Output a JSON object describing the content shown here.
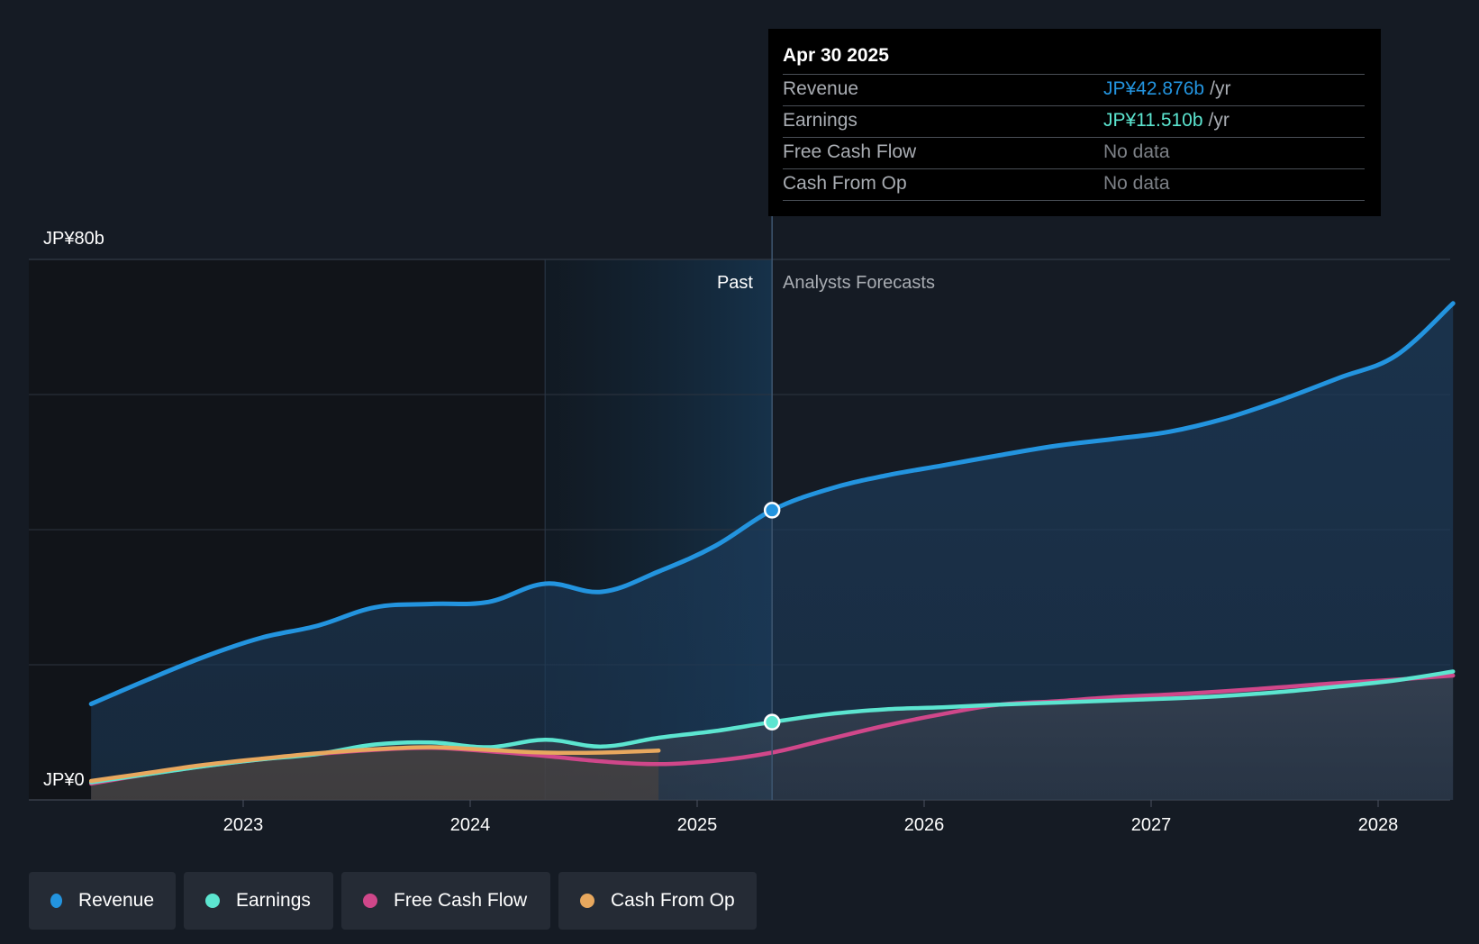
{
  "colors": {
    "background": "#151b24",
    "revenue": "#2394df",
    "earnings": "#5ce5d0",
    "free_cash_flow": "#d0478a",
    "cash_from_op": "#e8a85e",
    "muted": "#a9adb3",
    "no_data": "#7d8187"
  },
  "tooltip": {
    "date": "Apr 30 2025",
    "rows": [
      {
        "label": "Revenue",
        "value": "JP¥42.876b",
        "unit": "/yr",
        "color": "#2394df"
      },
      {
        "label": "Earnings",
        "value": "JP¥11.510b",
        "unit": "/yr",
        "color": "#5ce5d0"
      },
      {
        "label": "Free Cash Flow",
        "value": "No data",
        "unit": "",
        "color": "#7d8187"
      },
      {
        "label": "Cash From Op",
        "value": "No data",
        "unit": "",
        "color": "#7d8187"
      }
    ]
  },
  "sections": {
    "past_label": "Past",
    "forecast_label": "Analysts Forecasts"
  },
  "legend": [
    {
      "label": "Revenue",
      "color": "#2394df"
    },
    {
      "label": "Earnings",
      "color": "#5ce5d0"
    },
    {
      "label": "Free Cash Flow",
      "color": "#d0478a"
    },
    {
      "label": "Cash From Op",
      "color": "#e8a85e"
    }
  ],
  "chart_data": {
    "type": "line",
    "title": "",
    "xlabel": "",
    "ylabel": "",
    "y_unit": "JP¥ billions",
    "ylim": [
      0,
      80
    ],
    "xlim": [
      2022.0,
      2028.33
    ],
    "y_tick_labels": [
      {
        "value": 80,
        "label": "JP¥80b"
      },
      {
        "value": 0,
        "label": "JP¥0"
      }
    ],
    "gridlines_y": [
      0,
      20,
      40,
      60,
      80
    ],
    "x_ticks": [
      {
        "value": 2023,
        "label": "2023"
      },
      {
        "value": 2024,
        "label": "2024"
      },
      {
        "value": 2025,
        "label": "2025"
      },
      {
        "value": 2026,
        "label": "2026"
      },
      {
        "value": 2027,
        "label": "2027"
      },
      {
        "value": 2028,
        "label": "2028"
      }
    ],
    "past_end": 2025.33,
    "highlight_start": 2024.33,
    "series": [
      {
        "name": "Revenue",
        "key": "revenue",
        "x": [
          2022.33,
          2022.58,
          2022.83,
          2023.08,
          2023.33,
          2023.58,
          2023.83,
          2024.08,
          2024.33,
          2024.58,
          2024.83,
          2025.08,
          2025.33,
          2025.58,
          2025.83,
          2026.08,
          2026.33,
          2026.58,
          2026.83,
          2027.08,
          2027.33,
          2027.58,
          2027.83,
          2028.08,
          2028.33
        ],
        "values": [
          14.2,
          17.8,
          21.2,
          24.0,
          25.8,
          28.5,
          29.0,
          29.3,
          32.0,
          30.8,
          33.8,
          37.6,
          42.876,
          46.0,
          48.0,
          49.5,
          51.0,
          52.4,
          53.4,
          54.5,
          56.5,
          59.3,
          62.5,
          65.8,
          73.5
        ],
        "marker": {
          "x": 2025.33,
          "value": 42.876
        }
      },
      {
        "name": "Earnings",
        "key": "earnings",
        "x": [
          2022.33,
          2022.58,
          2022.83,
          2023.08,
          2023.33,
          2023.58,
          2023.83,
          2024.08,
          2024.33,
          2024.58,
          2024.83,
          2025.08,
          2025.33,
          2025.58,
          2025.83,
          2026.08,
          2026.33,
          2026.58,
          2026.83,
          2027.08,
          2027.33,
          2027.58,
          2027.83,
          2028.08,
          2028.33
        ],
        "values": [
          2.6,
          3.8,
          5.0,
          6.0,
          6.8,
          8.2,
          8.5,
          7.8,
          8.9,
          7.9,
          9.2,
          10.2,
          11.51,
          12.7,
          13.4,
          13.7,
          14.1,
          14.4,
          14.7,
          15.0,
          15.4,
          16.0,
          16.8,
          17.7,
          19.0
        ]
      },
      {
        "name": "Free Cash Flow",
        "key": "free_cash_flow",
        "x": [
          2022.33,
          2022.58,
          2022.83,
          2023.08,
          2023.33,
          2023.58,
          2023.83,
          2024.08,
          2024.33,
          2024.58,
          2024.83,
          2025.08,
          2025.33,
          2025.58,
          2025.83,
          2026.08,
          2026.33,
          2026.58,
          2026.83,
          2027.08,
          2027.33,
          2027.58,
          2027.83,
          2028.08,
          2028.33
        ],
        "values": [
          2.4,
          3.8,
          5.0,
          6.0,
          6.8,
          7.4,
          7.7,
          7.2,
          6.5,
          5.7,
          5.3,
          5.8,
          7.0,
          9.0,
          11.0,
          12.7,
          14.1,
          14.6,
          15.2,
          15.6,
          16.1,
          16.7,
          17.3,
          17.8,
          18.4
        ]
      },
      {
        "name": "Cash From Op",
        "key": "cash_from_op",
        "x": [
          2022.33,
          2022.58,
          2022.83,
          2023.08,
          2023.33,
          2023.58,
          2023.83,
          2024.08,
          2024.33,
          2024.58,
          2024.83
        ],
        "values": [
          2.8,
          4.0,
          5.2,
          6.1,
          6.9,
          7.5,
          7.8,
          7.4,
          7.0,
          7.0,
          7.3
        ]
      }
    ]
  }
}
